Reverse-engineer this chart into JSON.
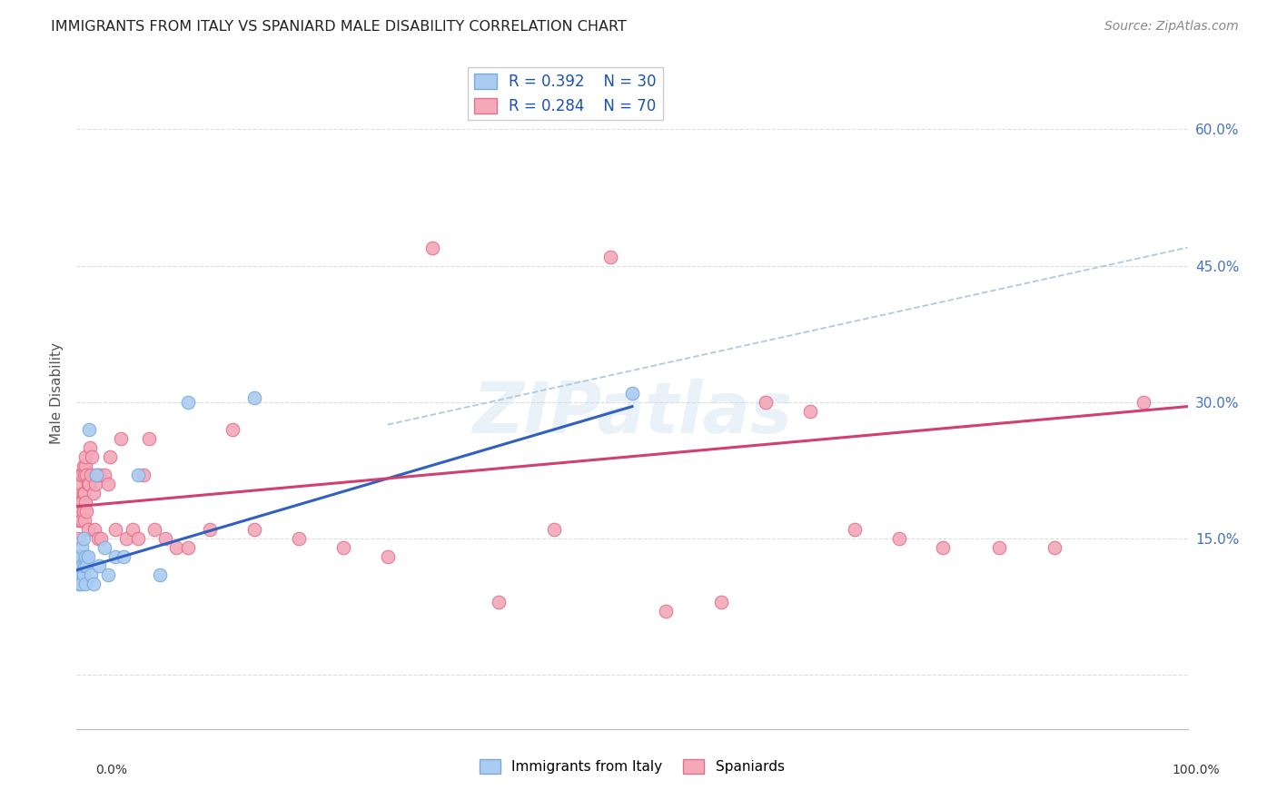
{
  "title": "IMMIGRANTS FROM ITALY VS SPANIARD MALE DISABILITY CORRELATION CHART",
  "source": "Source: ZipAtlas.com",
  "ylabel": "Male Disability",
  "y_ticks": [
    0.0,
    0.15,
    0.3,
    0.45,
    0.6
  ],
  "y_tick_labels": [
    "",
    "15.0%",
    "30.0%",
    "45.0%",
    "60.0%"
  ],
  "x_range": [
    0.0,
    1.0
  ],
  "y_range": [
    -0.06,
    0.68
  ],
  "color_italy": "#aaccf0",
  "color_spain": "#f4a8b8",
  "color_italy_line": "#3060c0",
  "color_spain_line": "#d04070",
  "color_italy_edge": "#7aaadd",
  "color_spain_edge": "#e07090",
  "color_diag_line": "#b0c8e0",
  "watermark": "ZIPatlas",
  "background_color": "#ffffff",
  "grid_color": "#dddddd",
  "italy_x": [
    0.001,
    0.002,
    0.002,
    0.003,
    0.003,
    0.004,
    0.004,
    0.005,
    0.005,
    0.006,
    0.006,
    0.007,
    0.008,
    0.008,
    0.009,
    0.01,
    0.011,
    0.013,
    0.015,
    0.018,
    0.02,
    0.025,
    0.028,
    0.035,
    0.042,
    0.055,
    0.075,
    0.1,
    0.16,
    0.5
  ],
  "italy_y": [
    0.11,
    0.1,
    0.13,
    0.11,
    0.12,
    0.1,
    0.13,
    0.12,
    0.14,
    0.11,
    0.15,
    0.12,
    0.1,
    0.13,
    0.12,
    0.13,
    0.27,
    0.11,
    0.1,
    0.22,
    0.12,
    0.14,
    0.11,
    0.13,
    0.13,
    0.22,
    0.11,
    0.3,
    0.305,
    0.31
  ],
  "spain_x": [
    0.001,
    0.001,
    0.002,
    0.002,
    0.003,
    0.003,
    0.003,
    0.004,
    0.004,
    0.005,
    0.005,
    0.005,
    0.006,
    0.006,
    0.006,
    0.007,
    0.007,
    0.007,
    0.008,
    0.008,
    0.008,
    0.009,
    0.009,
    0.01,
    0.01,
    0.011,
    0.012,
    0.013,
    0.014,
    0.015,
    0.016,
    0.017,
    0.018,
    0.019,
    0.02,
    0.022,
    0.025,
    0.028,
    0.03,
    0.035,
    0.04,
    0.045,
    0.05,
    0.055,
    0.06,
    0.065,
    0.07,
    0.08,
    0.09,
    0.1,
    0.12,
    0.14,
    0.16,
    0.2,
    0.24,
    0.28,
    0.32,
    0.38,
    0.43,
    0.48,
    0.53,
    0.58,
    0.62,
    0.66,
    0.7,
    0.74,
    0.78,
    0.83,
    0.88,
    0.96
  ],
  "spain_y": [
    0.17,
    0.15,
    0.18,
    0.2,
    0.22,
    0.19,
    0.17,
    0.18,
    0.21,
    0.17,
    0.22,
    0.19,
    0.23,
    0.18,
    0.2,
    0.2,
    0.17,
    0.22,
    0.23,
    0.24,
    0.19,
    0.22,
    0.18,
    0.21,
    0.16,
    0.21,
    0.25,
    0.22,
    0.24,
    0.2,
    0.16,
    0.21,
    0.22,
    0.15,
    0.22,
    0.15,
    0.22,
    0.21,
    0.24,
    0.16,
    0.26,
    0.15,
    0.16,
    0.15,
    0.22,
    0.26,
    0.16,
    0.15,
    0.14,
    0.14,
    0.16,
    0.27,
    0.16,
    0.15,
    0.14,
    0.13,
    0.47,
    0.08,
    0.16,
    0.46,
    0.07,
    0.08,
    0.3,
    0.29,
    0.16,
    0.15,
    0.14,
    0.14,
    0.14,
    0.3
  ],
  "italy_line_x": [
    0.0,
    0.5
  ],
  "italy_line_y": [
    0.115,
    0.295
  ],
  "spain_line_x": [
    0.0,
    1.0
  ],
  "spain_line_y": [
    0.185,
    0.295
  ],
  "diag_line_x": [
    0.28,
    1.0
  ],
  "diag_line_y": [
    0.275,
    0.47
  ]
}
